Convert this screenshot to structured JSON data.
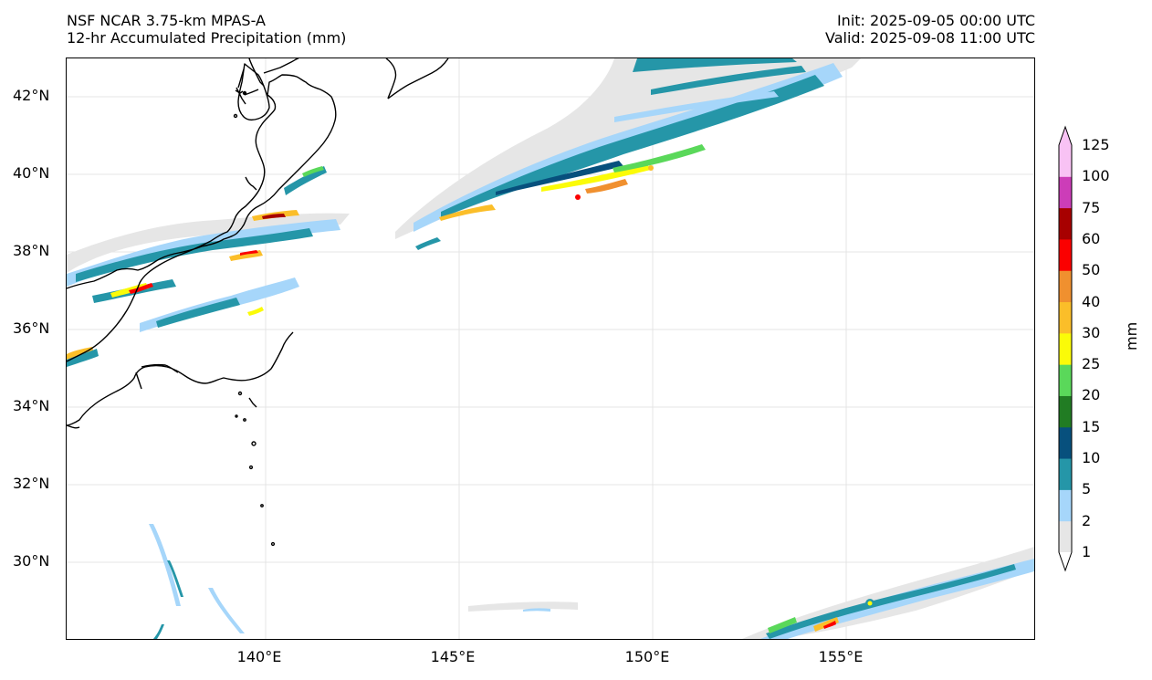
{
  "header": {
    "model": "NSF NCAR 3.75-km MPAS-A",
    "field": "12-hr Accumulated Precipitation (mm)",
    "init": "Init: 2025-09-05 00:00 UTC",
    "valid": "Valid: 2025-09-08 11:00 UTC"
  },
  "axes": {
    "lat_labels": [
      "42°N",
      "40°N",
      "38°N",
      "36°N",
      "34°N",
      "32°N",
      "30°N"
    ],
    "lon_labels": [
      "140°E",
      "145°E",
      "150°E",
      "155°E"
    ]
  },
  "colorbar": {
    "unit": "mm",
    "levels": [
      "1",
      "2",
      "5",
      "10",
      "15",
      "20",
      "25",
      "30",
      "40",
      "50",
      "60",
      "75",
      "100",
      "125"
    ],
    "colors": [
      "#e6e6e6",
      "#a6d6fa",
      "#2596a8",
      "#07507d",
      "#217c23",
      "#5ad85a",
      "#fbfb08",
      "#fbbe29",
      "#f0902f",
      "#fb0000",
      "#a70000",
      "#cc3db8",
      "#f8c2f4"
    ]
  }
}
